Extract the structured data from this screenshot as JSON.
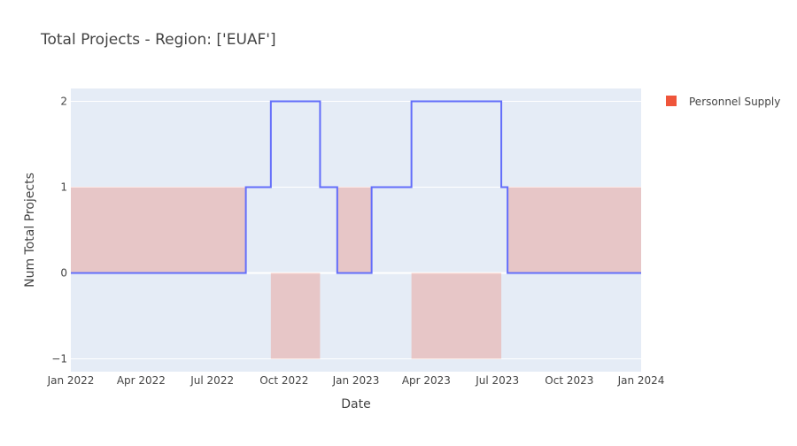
{
  "chart_data": {
    "type": "line",
    "title": "Total Projects - Region: ['EUAF']",
    "xlabel": "Date",
    "ylabel": "Num Total Projects",
    "x_ticks": [
      "Jan 2022",
      "Apr 2022",
      "Jul 2022",
      "Oct 2022",
      "Jan 2023",
      "Apr 2023",
      "Jul 2023",
      "Oct 2023",
      "Jan 2024"
    ],
    "y_ticks": [
      "−1",
      "0",
      "1",
      "2"
    ],
    "xlim": [
      "2022-01-01",
      "2024-01-01"
    ],
    "ylim": [
      -1.15,
      2.15
    ],
    "grid": true,
    "legend_position": "top-right",
    "line_series": {
      "color": "#636efa",
      "points": [
        [
          "2022-01-01",
          0
        ],
        [
          "2022-08-13",
          0
        ],
        [
          "2022-08-13",
          1
        ],
        [
          "2022-09-14",
          1
        ],
        [
          "2022-09-14",
          2
        ],
        [
          "2022-11-16",
          2
        ],
        [
          "2022-11-16",
          1
        ],
        [
          "2022-12-08",
          1
        ],
        [
          "2022-12-08",
          0
        ],
        [
          "2023-01-21",
          0
        ],
        [
          "2023-01-21",
          1
        ],
        [
          "2023-03-13",
          1
        ],
        [
          "2023-03-13",
          2
        ],
        [
          "2023-07-06",
          2
        ],
        [
          "2023-07-06",
          1
        ],
        [
          "2023-07-14",
          1
        ],
        [
          "2023-07-14",
          0
        ],
        [
          "2024-01-01",
          0
        ]
      ]
    },
    "series": [
      {
        "name": "Personnel Supply",
        "type": "bar",
        "color": "#ef553b",
        "segments": [
          {
            "start": "2022-01-01",
            "end": "2022-08-13",
            "value": 1
          },
          {
            "start": "2022-09-14",
            "end": "2022-11-16",
            "value": -1
          },
          {
            "start": "2022-12-08",
            "end": "2023-01-21",
            "value": 1
          },
          {
            "start": "2023-03-13",
            "end": "2023-07-06",
            "value": -1
          },
          {
            "start": "2023-07-14",
            "end": "2024-01-01",
            "value": 1
          }
        ]
      }
    ]
  }
}
